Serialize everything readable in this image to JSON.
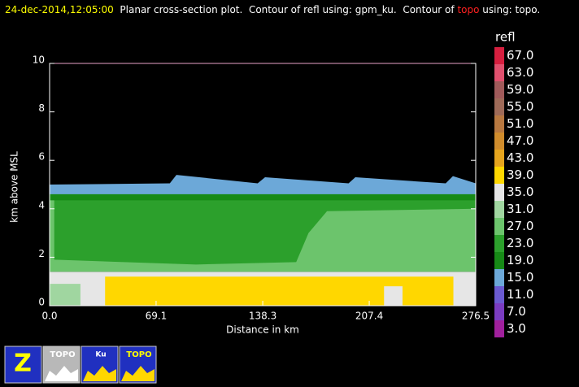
{
  "chart_data": {
    "type": "contour",
    "title": [
      {
        "text": "24-dec-2014,12:05:00",
        "color": "#ffff00"
      },
      {
        "text": "  Planar cross-section plot.  Contour of refl using: gpm_ku.  Contour of ",
        "color": "#ffffff"
      },
      {
        "text": "topo",
        "color": "#ff2020"
      },
      {
        "text": " using: topo.",
        "color": "#ffffff"
      }
    ],
    "x_label": "Distance in km",
    "y_label": "km above MSL",
    "xlim": [
      0,
      276.5
    ],
    "ylim": [
      0,
      10
    ],
    "xticks": [
      {
        "value": 0,
        "label": "0.0"
      },
      69.1,
      138.3,
      207.4,
      276.5
    ],
    "yticks": [
      0,
      2,
      4,
      6,
      8,
      10
    ],
    "regions": [
      {
        "color": "#e6e6e6",
        "x": [
          0,
          276.5,
          276.5,
          0
        ],
        "y": [
          0,
          0,
          1.4,
          1.4
        ]
      },
      {
        "color": "#6cc46c",
        "x": [
          0,
          276.5,
          276.5,
          0
        ],
        "y": [
          1.4,
          1.4,
          4.7,
          4.7
        ]
      },
      {
        "color": "#2ca02c",
        "x": [
          3,
          95,
          160,
          168,
          180,
          276.5,
          276.5,
          3
        ],
        "y": [
          1.9,
          1.7,
          1.8,
          3.0,
          3.9,
          4.0,
          4.6,
          4.6
        ]
      },
      {
        "color": "#178a17",
        "x": [
          0,
          276.5,
          276.5,
          0
        ],
        "y": [
          4.35,
          4.35,
          4.75,
          4.75
        ]
      },
      {
        "color": "#a0d6a0",
        "x": [
          0,
          20,
          20,
          0
        ],
        "y": [
          0,
          0,
          0.9,
          0.9
        ]
      },
      {
        "color": "#ffd700",
        "x": [
          36,
          36,
          262,
          262,
          229,
          229,
          217,
          217
        ],
        "y": [
          0,
          1.2,
          1.2,
          0,
          0,
          0.8,
          0.8,
          0
        ]
      },
      {
        "color": "#6ca8d8",
        "x": [
          0,
          276.5,
          276.5,
          261.7,
          257,
          198.4,
          194,
          139.8,
          135,
          82.3,
          78,
          0
        ],
        "y": [
          4.6,
          4.6,
          5.05,
          5.35,
          5.05,
          5.3,
          5.05,
          5.3,
          5.05,
          5.4,
          5.05,
          5.0
        ]
      }
    ],
    "colorbar": {
      "label": "refl",
      "levels": [
        {
          "value": 67,
          "label": "67.0",
          "color": "#d61f3f"
        },
        {
          "value": 63,
          "label": "63.0",
          "color": "#e0506e"
        },
        {
          "value": 59,
          "label": "59.0",
          "color": "#a05a5a"
        },
        {
          "value": 55,
          "label": "55.0",
          "color": "#9e6a58"
        },
        {
          "value": 51,
          "label": "51.0",
          "color": "#b87840"
        },
        {
          "value": 47,
          "label": "47.0",
          "color": "#d08c2c"
        },
        {
          "value": 43,
          "label": "43.0",
          "color": "#e6a51e"
        },
        {
          "value": 39,
          "label": "39.0",
          "color": "#ffd700"
        },
        {
          "value": 35,
          "label": "35.0",
          "color": "#e6e6e6"
        },
        {
          "value": 31,
          "label": "31.0",
          "color": "#a0d6a0"
        },
        {
          "value": 27,
          "label": "27.0",
          "color": "#6cc46c"
        },
        {
          "value": 23,
          "label": "23.0",
          "color": "#2ca02c"
        },
        {
          "value": 19,
          "label": "19.0",
          "color": "#178a17"
        },
        {
          "value": 15,
          "label": "15.0",
          "color": "#6ca8d8"
        },
        {
          "value": 11,
          "label": "11.0",
          "color": "#6a5ad0"
        },
        {
          "value": 7,
          "label": "7.0",
          "color": "#7a3cc0"
        },
        {
          "value": 3,
          "label": "3.0",
          "color": "#a0209c"
        }
      ]
    },
    "icons": [
      {
        "label": "Z"
      },
      {
        "label": "TOPO"
      },
      {
        "label": "Ku"
      },
      {
        "label": "TOPO"
      }
    ]
  }
}
